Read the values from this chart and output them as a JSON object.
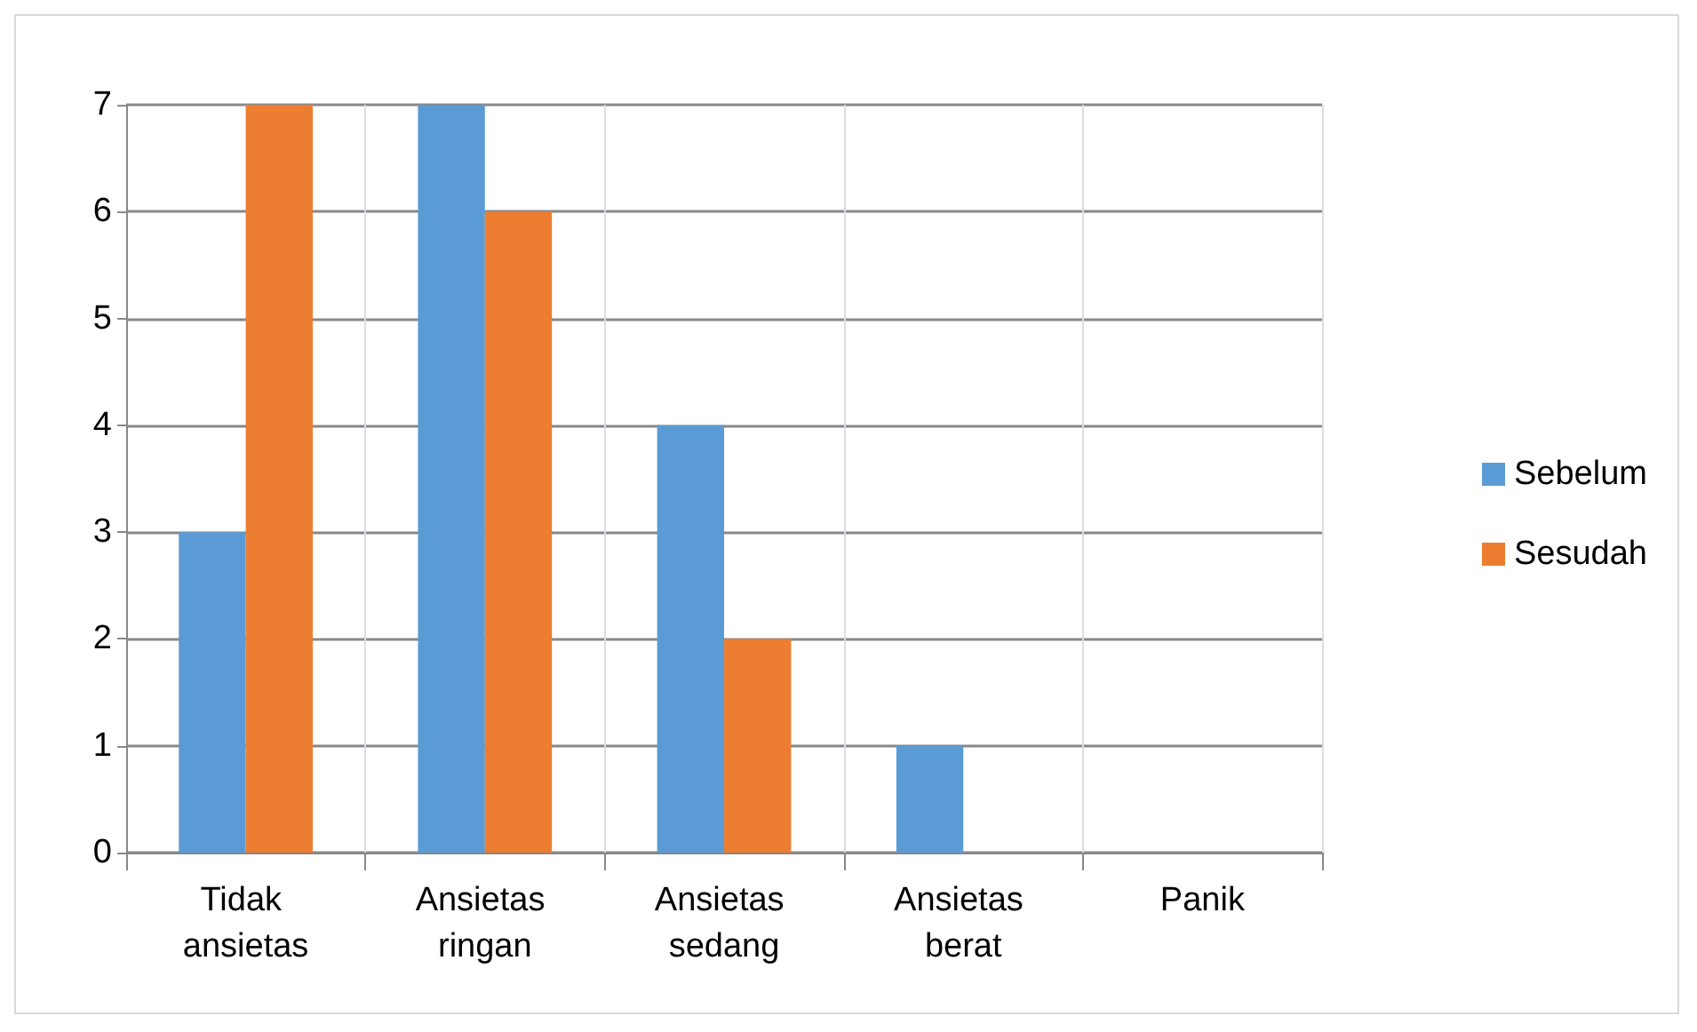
{
  "chart_data": {
    "type": "bar",
    "categories": [
      "Tidak ansietas",
      "Ansietas ringan",
      "Ansietas sedang",
      "Ansietas berat",
      "Panik"
    ],
    "series": [
      {
        "name": "Sebelum",
        "color": "#5b9bd5",
        "values": [
          3,
          7,
          4,
          1,
          0
        ]
      },
      {
        "name": "Sesudah",
        "color": "#ed7d31",
        "values": [
          7,
          6,
          2,
          0,
          0
        ]
      }
    ],
    "ylim": [
      0,
      7
    ],
    "yticks": [
      0,
      1,
      2,
      3,
      4,
      5,
      6,
      7
    ],
    "grid": true,
    "legend": "right"
  }
}
